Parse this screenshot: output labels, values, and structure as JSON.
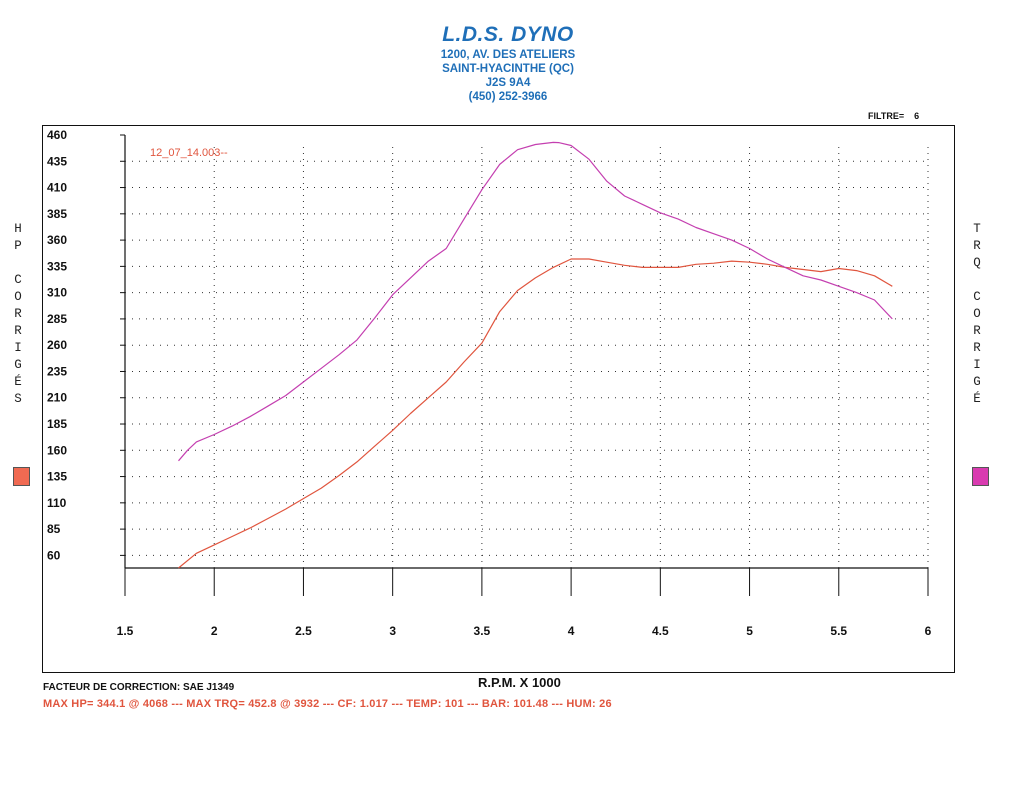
{
  "header": {
    "title": "L.D.S. DYNO",
    "address1": "1200, AV. DES ATELIERS",
    "address2": "SAINT-HYACINTHE (QC)",
    "address3": "J2S 9A4",
    "phone": "(450) 252-3966"
  },
  "filter": {
    "label": "FILTRE=",
    "value": "6"
  },
  "left_axis": {
    "letters": [
      "H",
      "P",
      "",
      "C",
      "O",
      "R",
      "R",
      "I",
      "G",
      "É",
      "S"
    ],
    "swatch_color": "#f06a52"
  },
  "right_axis": {
    "letters": [
      "T",
      "R",
      "Q",
      "",
      "C",
      "O",
      "R",
      "R",
      "I",
      "G",
      "É"
    ],
    "swatch_color": "#d93bb0"
  },
  "footer": {
    "correction": "FACTEUR DE CORRECTION: SAE J1349",
    "summary": "MAX HP=  344.1 @  4068  ---  MAX TRQ=  452.8 @  3932  ---  CF: 1.017  ---  TEMP: 101  ---  BAR: 101.48  ---  HUM: 26"
  },
  "chart_data": {
    "type": "line",
    "run_label": "12_07_14.003--",
    "xlabel": "R.P.M. X 1000",
    "xlim": [
      1.5,
      6
    ],
    "xticks": [
      "1.5",
      "2",
      "2.5",
      "3",
      "3.5",
      "4",
      "4.5",
      "5",
      "5.5",
      "6"
    ],
    "ylim": [
      48,
      460
    ],
    "yticks": [
      "460",
      "435",
      "410",
      "385",
      "360",
      "335",
      "310",
      "285",
      "260",
      "235",
      "210",
      "185",
      "160",
      "135",
      "110",
      "85",
      "60"
    ],
    "grid": true,
    "series": [
      {
        "key": "hp",
        "color": "#e0553e",
        "x": [
          1.8,
          1.9,
          2.0,
          2.1,
          2.2,
          2.3,
          2.4,
          2.5,
          2.6,
          2.7,
          2.8,
          2.9,
          3.0,
          3.1,
          3.2,
          3.3,
          3.4,
          3.5,
          3.6,
          3.7,
          3.8,
          3.9,
          4.0,
          4.1,
          4.2,
          4.3,
          4.4,
          4.5,
          4.6,
          4.7,
          4.8,
          4.9,
          5.0,
          5.1,
          5.2,
          5.3,
          5.4,
          5.5,
          5.6,
          5.7,
          5.8
        ],
        "y": [
          48,
          62,
          70,
          78,
          86,
          95,
          104,
          114,
          124,
          136,
          149,
          164,
          179,
          195,
          210,
          225,
          244,
          262,
          292,
          312,
          324,
          334,
          342,
          342,
          339,
          336,
          334,
          334,
          334,
          337,
          338,
          340,
          339,
          337,
          334,
          332,
          330,
          333,
          331,
          326,
          316
        ]
      },
      {
        "key": "trq",
        "color": "#c43fb0",
        "x": [
          1.8,
          1.85,
          1.9,
          2.0,
          2.1,
          2.2,
          2.3,
          2.4,
          2.5,
          2.6,
          2.7,
          2.8,
          2.9,
          3.0,
          3.1,
          3.2,
          3.3,
          3.4,
          3.5,
          3.6,
          3.7,
          3.8,
          3.9,
          3.93,
          4.0,
          4.1,
          4.2,
          4.3,
          4.4,
          4.5,
          4.6,
          4.7,
          4.8,
          4.9,
          5.0,
          5.1,
          5.2,
          5.3,
          5.4,
          5.5,
          5.6,
          5.7,
          5.8
        ],
        "y": [
          150,
          160,
          168,
          175,
          183,
          192,
          202,
          212,
          225,
          238,
          251,
          265,
          286,
          308,
          324,
          340,
          352,
          380,
          408,
          432,
          446,
          451,
          453,
          452.8,
          450,
          437,
          416,
          402,
          394,
          386,
          380,
          372,
          366,
          360,
          352,
          342,
          334,
          326,
          322,
          316,
          310,
          303,
          285
        ]
      }
    ]
  }
}
